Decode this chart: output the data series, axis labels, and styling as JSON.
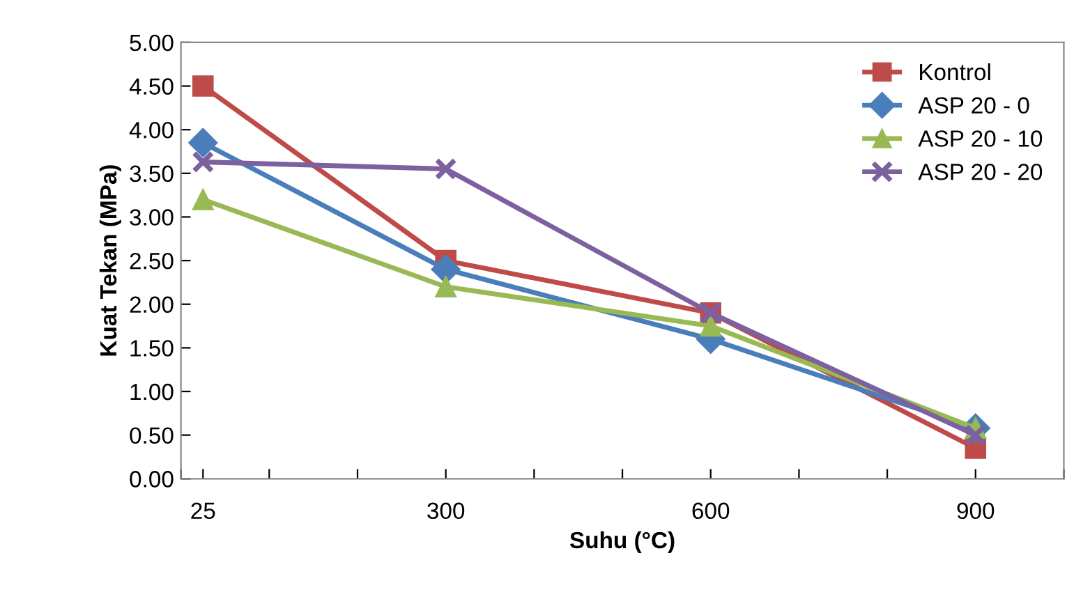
{
  "chart_data": {
    "type": "line",
    "xlabel": "Suhu (°C)",
    "ylabel": "Kuat Tekan (MPa)",
    "x": [
      25,
      300,
      600,
      900
    ],
    "series": [
      {
        "name": "Kontrol",
        "color": "#be4b48",
        "marker": "square",
        "values": [
          4.5,
          2.5,
          1.9,
          0.35
        ]
      },
      {
        "name": "ASP 20 - 0",
        "color": "#4a7ebb",
        "marker": "diamond",
        "values": [
          3.85,
          2.4,
          1.6,
          0.58
        ]
      },
      {
        "name": "ASP 20 - 10",
        "color": "#98b954",
        "marker": "triangle",
        "values": [
          3.2,
          2.2,
          1.75,
          0.58
        ]
      },
      {
        "name": "ASP 20 - 20",
        "color": "#7d60a0",
        "marker": "cross",
        "values": [
          3.63,
          3.55,
          1.9,
          0.5
        ]
      }
    ],
    "xlim": [
      0,
      1000
    ],
    "xticks": [
      {
        "value": 0,
        "label": null
      },
      {
        "value": 25,
        "label": "25"
      },
      {
        "value": 100,
        "label": null
      },
      {
        "value": 200,
        "label": null
      },
      {
        "value": 300,
        "label": "300"
      },
      {
        "value": 400,
        "label": null
      },
      {
        "value": 500,
        "label": null
      },
      {
        "value": 600,
        "label": "600"
      },
      {
        "value": 700,
        "label": null
      },
      {
        "value": 800,
        "label": null
      },
      {
        "value": 900,
        "label": "900"
      },
      {
        "value": 1000,
        "label": null
      }
    ],
    "ylim": [
      0,
      5
    ],
    "yticks": [
      {
        "value": 0,
        "label": "0.00"
      },
      {
        "value": 0.5,
        "label": "0.50"
      },
      {
        "value": 1,
        "label": "1.00"
      },
      {
        "value": 1.5,
        "label": "1.50"
      },
      {
        "value": 2,
        "label": "2.00"
      },
      {
        "value": 2.5,
        "label": "2.50"
      },
      {
        "value": 3,
        "label": "3.00"
      },
      {
        "value": 3.5,
        "label": "3.50"
      },
      {
        "value": 4,
        "label": "4.00"
      },
      {
        "value": 4.5,
        "label": "4.50"
      },
      {
        "value": 5,
        "label": "5.00"
      }
    ],
    "grid": false,
    "legend": "top right",
    "line_style": "solid"
  }
}
